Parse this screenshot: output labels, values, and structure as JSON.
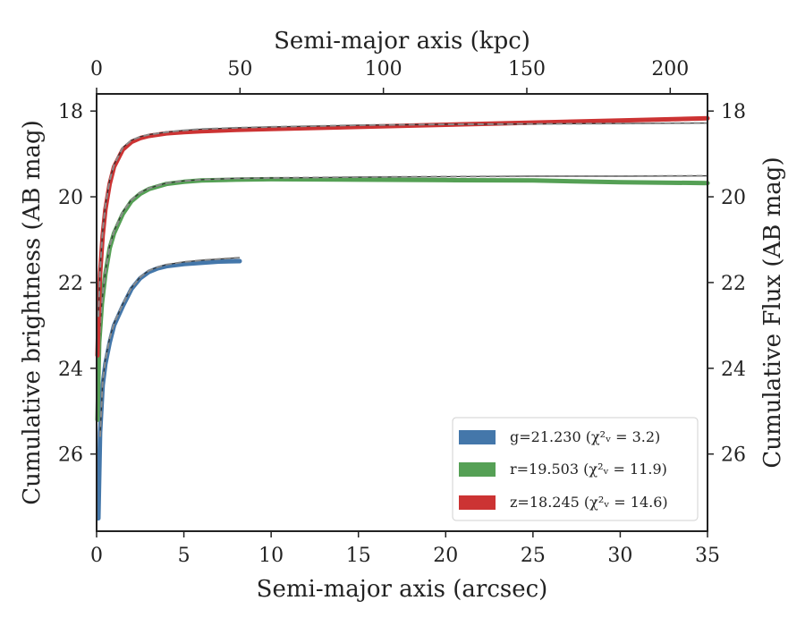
{
  "chart_data": {
    "type": "line",
    "xlabel": "Semi-major axis (arcsec)",
    "ylabel": "Cumulative brightness (AB mag)",
    "top_xlabel": "Semi-major axis (kpc)",
    "right_ylabel": "Cumulative Flux (AB mag)",
    "xlim": [
      0,
      35
    ],
    "ylim": [
      27.8,
      17.6
    ],
    "top_xlim": [
      0,
      213
    ],
    "x_ticks": [
      "0",
      "5",
      "10",
      "15",
      "20",
      "25",
      "30",
      "35"
    ],
    "x_tick_values": [
      0,
      5,
      10,
      15,
      20,
      25,
      30,
      35
    ],
    "top_x_ticks": [
      "0",
      "50",
      "100",
      "150",
      "200"
    ],
    "top_x_tick_values": [
      0,
      50,
      100,
      150,
      200
    ],
    "y_ticks": [
      "18",
      "20",
      "22",
      "24",
      "26"
    ],
    "y_tick_values": [
      18,
      20,
      22,
      24,
      26
    ],
    "legend_position": "lower right",
    "series": [
      {
        "name": "g",
        "legend_label": "g=21.230 (χ²ᵥ = 3.2)",
        "color": "#4477aa",
        "x": [
          0.1,
          0.2,
          0.35,
          0.5,
          0.75,
          1.0,
          1.5,
          2.0,
          2.5,
          3.0,
          3.5,
          4.0,
          5.0,
          6.0,
          7.0,
          8.2
        ],
        "y": [
          27.5,
          25.5,
          24.4,
          23.9,
          23.4,
          23.0,
          22.55,
          22.15,
          21.9,
          21.75,
          21.67,
          21.62,
          21.57,
          21.54,
          21.51,
          21.5
        ],
        "model_x": [
          0.2,
          0.35,
          0.5,
          0.75,
          1.0,
          1.5,
          2.0,
          2.5,
          3.0,
          3.5,
          4.0,
          5.0,
          6.0,
          7.0,
          8.2
        ],
        "model_y": [
          25.6,
          24.3,
          23.8,
          23.3,
          22.95,
          22.5,
          22.12,
          21.87,
          21.72,
          21.64,
          21.58,
          21.52,
          21.48,
          21.45,
          21.42
        ]
      },
      {
        "name": "r",
        "legend_label": "r=19.503 (χ²ᵥ = 11.9)",
        "color": "#55a055",
        "x": [
          0.05,
          0.15,
          0.3,
          0.5,
          0.75,
          1.0,
          1.5,
          2.0,
          2.5,
          3.0,
          4.0,
          5.0,
          6.0,
          8.0,
          10,
          15,
          20,
          25,
          30,
          35
        ],
        "y": [
          25.2,
          23.4,
          22.5,
          21.8,
          21.2,
          20.85,
          20.4,
          20.1,
          19.93,
          19.82,
          19.7,
          19.65,
          19.62,
          19.6,
          19.59,
          19.6,
          19.61,
          19.62,
          19.66,
          19.68
        ],
        "model_x": [
          0.15,
          0.3,
          0.5,
          0.75,
          1.0,
          1.5,
          2.0,
          2.5,
          3.0,
          4.0,
          5.0,
          6.0,
          8.0,
          10,
          15,
          20,
          25,
          30,
          35
        ],
        "model_y": [
          23.4,
          22.45,
          21.75,
          21.15,
          20.8,
          20.35,
          20.07,
          19.9,
          19.8,
          19.68,
          19.63,
          19.6,
          19.57,
          19.56,
          19.54,
          19.53,
          19.52,
          19.52,
          19.51
        ]
      },
      {
        "name": "z",
        "legend_label": "z=18.245 (χ²ᵥ = 14.6)",
        "color": "#cc3333",
        "x": [
          0.05,
          0.1,
          0.2,
          0.35,
          0.5,
          0.75,
          1.0,
          1.5,
          2.0,
          2.5,
          3.0,
          4.0,
          5.0,
          6.0,
          8.0,
          10,
          15,
          20,
          25,
          30,
          35
        ],
        "y": [
          23.7,
          22.9,
          21.8,
          20.9,
          20.3,
          19.7,
          19.3,
          18.9,
          18.72,
          18.63,
          18.58,
          18.52,
          18.49,
          18.47,
          18.44,
          18.42,
          18.37,
          18.32,
          18.27,
          18.22,
          18.17
        ],
        "model_x": [
          0.1,
          0.2,
          0.35,
          0.5,
          0.75,
          1.0,
          1.5,
          2.0,
          2.5,
          3.0,
          4.0,
          5.0,
          6.0,
          8.0,
          10,
          15,
          20,
          25,
          30,
          35
        ],
        "model_y": [
          22.8,
          21.7,
          20.8,
          20.2,
          19.62,
          19.25,
          18.85,
          18.68,
          18.6,
          18.55,
          18.49,
          18.45,
          18.42,
          18.39,
          18.37,
          18.33,
          18.31,
          18.3,
          18.29,
          18.28
        ]
      }
    ]
  }
}
